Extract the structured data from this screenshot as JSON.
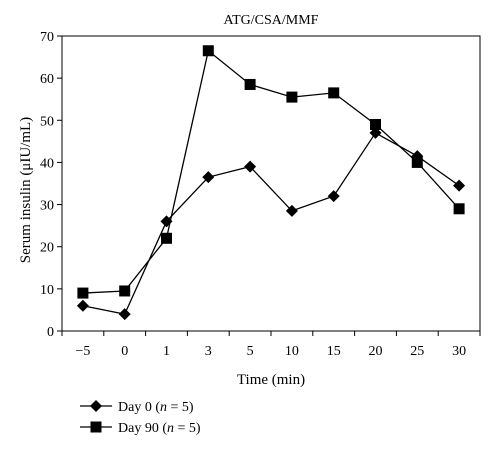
{
  "chart_data": {
    "type": "line",
    "title": "ATG/CSA/MMF",
    "xlabel": "Time (min)",
    "ylabel": "Serum insulin (μIU/mL)",
    "categories": [
      "−5",
      "0",
      "1",
      "3",
      "5",
      "10",
      "15",
      "20",
      "25",
      "30"
    ],
    "ylim": [
      0,
      70
    ],
    "yticks": [
      0,
      10,
      20,
      30,
      40,
      50,
      60,
      70
    ],
    "grid": false,
    "legend": "bottom-left",
    "series": [
      {
        "name": "Day 0 (n = 5)",
        "name_prefix": "Day 0 (",
        "name_var": "n",
        "name_suffix": " = 5)",
        "marker": "diamond",
        "values": [
          6,
          4,
          26,
          36.5,
          39,
          28.5,
          32,
          47,
          41.5,
          34.5
        ]
      },
      {
        "name": "Day 90 (n = 5)",
        "name_prefix": "Day 90 (",
        "name_var": "n",
        "name_suffix": " = 5)",
        "marker": "square",
        "values": [
          9,
          9.5,
          22,
          66.5,
          58.5,
          55.5,
          56.5,
          49,
          40,
          29
        ]
      }
    ]
  }
}
